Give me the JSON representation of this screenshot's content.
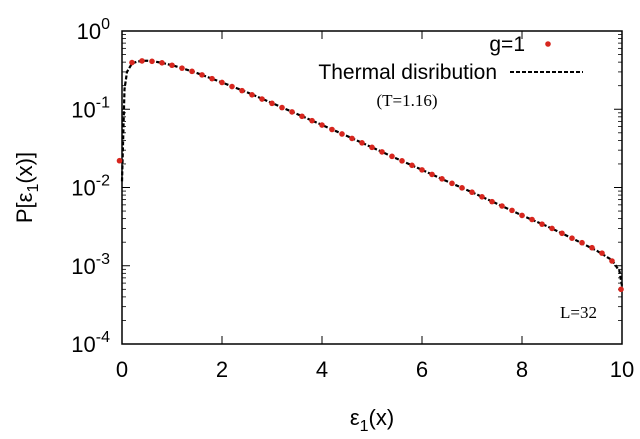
{
  "chart_data": {
    "type": "scatter",
    "title": "",
    "xlabel": {
      "base": "ε",
      "sub": "1",
      "rest": "(x)"
    },
    "ylabel": {
      "pre": "P[ε",
      "sub": "1",
      "rest": "(x)]"
    },
    "x_scale": "linear",
    "y_scale": "log",
    "xlim": [
      0,
      10
    ],
    "ylim": [
      0.0001,
      1
    ],
    "x_ticks": [
      0,
      2,
      4,
      6,
      8,
      10
    ],
    "x_tick_labels": [
      "0",
      "2",
      "4",
      "6",
      "8",
      "10"
    ],
    "y_ticks": [
      1,
      0.1,
      0.01,
      0.001,
      0.0001
    ],
    "y_tick_labels": [
      {
        "base": "10",
        "exp": "0"
      },
      {
        "base": "10",
        "exp": "-1"
      },
      {
        "base": "10",
        "exp": "-2"
      },
      {
        "base": "10",
        "exp": "-3"
      },
      {
        "base": "10",
        "exp": "-4"
      }
    ],
    "grid": false,
    "legend_position": "top-right",
    "annotations": {
      "temperature": "(T=1.16)",
      "size": "L=32"
    },
    "series": [
      {
        "name": "g=1",
        "kind": "points",
        "color": "#d7261e",
        "x": [
          -0.05,
          0.2,
          0.4,
          0.6,
          0.8,
          1.0,
          1.2,
          1.4,
          1.6,
          1.8,
          2.0,
          2.2,
          2.4,
          2.6,
          2.8,
          3.0,
          3.2,
          3.4,
          3.6,
          3.8,
          4.0,
          4.2,
          4.4,
          4.6,
          4.8,
          5.0,
          5.2,
          5.4,
          5.6,
          5.8,
          6.0,
          6.2,
          6.4,
          6.6,
          6.8,
          7.0,
          7.2,
          7.4,
          7.6,
          7.8,
          8.0,
          8.2,
          8.4,
          8.6,
          8.8,
          9.0,
          9.2,
          9.4,
          9.6,
          9.8,
          9.98
        ],
        "y": [
          0.022,
          0.395,
          0.415,
          0.41,
          0.392,
          0.365,
          0.335,
          0.305,
          0.275,
          0.246,
          0.22,
          0.195,
          0.173,
          0.153,
          0.135,
          0.119,
          0.105,
          0.0925,
          0.0813,
          0.0715,
          0.0628,
          0.0551,
          0.0483,
          0.0424,
          0.0372,
          0.0326,
          0.0285,
          0.025,
          0.0219,
          0.0192,
          0.0168,
          0.0147,
          0.0129,
          0.0113,
          0.0099,
          0.0087,
          0.0076,
          0.0066,
          0.0058,
          0.0051,
          0.0044,
          0.0039,
          0.0034,
          0.003,
          0.0026,
          0.00225,
          0.00197,
          0.0017,
          0.00145,
          0.00115,
          0.0005
        ]
      },
      {
        "name": "Thermal disribution",
        "kind": "dashed-line",
        "color": "#000000",
        "x": [
          0.0,
          0.05,
          0.1,
          0.2,
          0.3,
          0.4,
          0.5,
          0.6,
          0.8,
          1.0,
          1.2,
          1.5,
          2.0,
          2.5,
          3.0,
          3.5,
          4.0,
          4.5,
          5.0,
          5.5,
          6.0,
          6.5,
          7.0,
          7.5,
          8.0,
          8.5,
          9.0,
          9.5,
          9.8,
          9.95,
          10.0
        ],
        "y": [
          0.012,
          0.18,
          0.3,
          0.385,
          0.405,
          0.415,
          0.417,
          0.412,
          0.392,
          0.365,
          0.335,
          0.29,
          0.22,
          0.165,
          0.12,
          0.087,
          0.063,
          0.0455,
          0.0326,
          0.0233,
          0.0168,
          0.012,
          0.0087,
          0.0062,
          0.0044,
          0.0032,
          0.00225,
          0.00155,
          0.00118,
          0.00085,
          0.00055
        ]
      }
    ]
  }
}
